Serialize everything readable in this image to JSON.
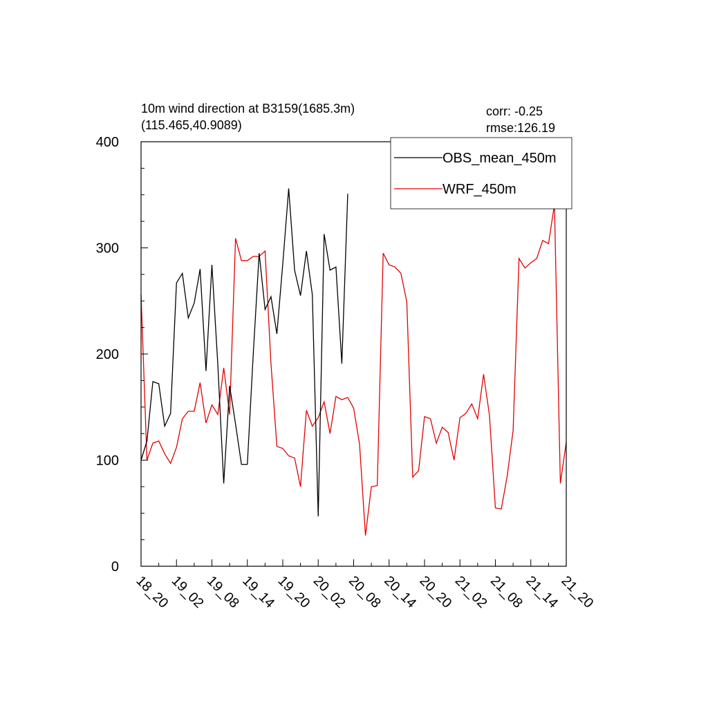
{
  "chart_data": {
    "type": "line",
    "title_line1": "10m wind direction at B3159(1685.3m)",
    "title_line2": "(115.465,40.9089)",
    "stats": {
      "corr": "corr: -0.25",
      "rmse": "rmse:126.19"
    },
    "ylim": [
      0,
      400
    ],
    "yticks": [
      0,
      100,
      200,
      300,
      400
    ],
    "ytick_labels": [
      "0",
      "100",
      "200",
      "300",
      "400"
    ],
    "y_minor_step": 25,
    "x_range": [
      0,
      72
    ],
    "xtick_positions": [
      0,
      6,
      12,
      18,
      24,
      30,
      36,
      42,
      48,
      54,
      60,
      66,
      72
    ],
    "xtick_labels": [
      "18_20",
      "19_02",
      "19_08",
      "19_14",
      "19_20",
      "20_02",
      "20_08",
      "20_14",
      "20_20",
      "21_02",
      "21_08",
      "21_14",
      "21_20"
    ],
    "legend": {
      "placement": "top-right"
    },
    "series": [
      {
        "name": "OBS_mean_450m",
        "color": "#000000",
        "x": [
          0,
          1,
          2,
          3,
          4,
          5,
          6,
          7,
          8,
          9,
          10,
          11,
          12,
          13,
          14,
          15,
          16,
          17,
          18,
          19,
          20,
          21,
          22,
          23,
          24,
          25,
          26,
          27,
          28,
          29,
          30,
          31,
          32,
          33,
          34,
          35
        ],
        "y": [
          100,
          118,
          174,
          172,
          132,
          144,
          267,
          276,
          234,
          248,
          280,
          184,
          284,
          190,
          78,
          170,
          134,
          96,
          96,
          200,
          295,
          242,
          254,
          219,
          285,
          356,
          279,
          255,
          297,
          256,
          47,
          313,
          279,
          282,
          191,
          351
        ]
      },
      {
        "name": "WRF_450m",
        "color": "#e00000",
        "x": [
          0,
          1,
          2,
          3,
          4,
          5,
          6,
          7,
          8,
          9,
          10,
          11,
          12,
          13,
          14,
          15,
          16,
          17,
          18,
          19,
          20,
          21,
          22,
          23,
          24,
          25,
          26,
          27,
          28,
          29,
          30,
          31,
          32,
          33,
          34,
          35,
          36,
          37,
          38,
          39,
          40,
          41,
          42,
          43,
          44,
          45,
          46,
          47,
          48,
          49,
          50,
          51,
          52,
          53,
          54,
          55,
          56,
          57,
          58,
          59,
          60,
          61,
          62,
          63,
          64,
          65,
          66,
          67,
          68,
          69,
          70,
          71,
          72
        ],
        "y": [
          256,
          100,
          116,
          118,
          106,
          97,
          112,
          139,
          146,
          146,
          173,
          135,
          152,
          143,
          187,
          143,
          309,
          288,
          288,
          292,
          292,
          297,
          191,
          113,
          111,
          104,
          102,
          75,
          147,
          132,
          140,
          155,
          125,
          160,
          157,
          159,
          149,
          115,
          29,
          75,
          76,
          295,
          284,
          282,
          276,
          249,
          84,
          90,
          141,
          139,
          116,
          131,
          126,
          100,
          140,
          144,
          153,
          139,
          181,
          142,
          55,
          54,
          85,
          128,
          290,
          281,
          286,
          290,
          307,
          304,
          341,
          78,
          117
        ]
      }
    ]
  }
}
